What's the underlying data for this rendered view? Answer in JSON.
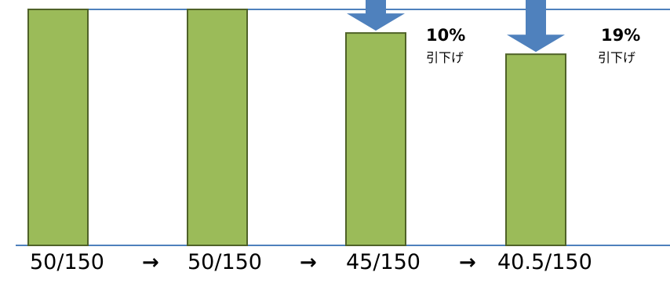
{
  "chart_data": {
    "type": "bar",
    "categories": [
      "50/150",
      "50/150",
      "45/150",
      "40.5/150"
    ],
    "values": [
      50,
      50,
      45,
      40.5
    ],
    "denominator": 150,
    "ylim": [
      0,
      50
    ],
    "title": "",
    "xlabel": "",
    "ylabel": "",
    "grid": false,
    "separator": "→",
    "reductions": [
      {
        "bar_index": 2,
        "percent": "10%",
        "label": "引下げ"
      },
      {
        "bar_index": 3,
        "percent": "19%",
        "label": "引下げ"
      }
    ],
    "colors": {
      "bar_fill": "#9bbb59",
      "bar_edge": "#4f6228",
      "reference_line": "#4f81bd",
      "down_arrow": "#4f81bd"
    }
  }
}
